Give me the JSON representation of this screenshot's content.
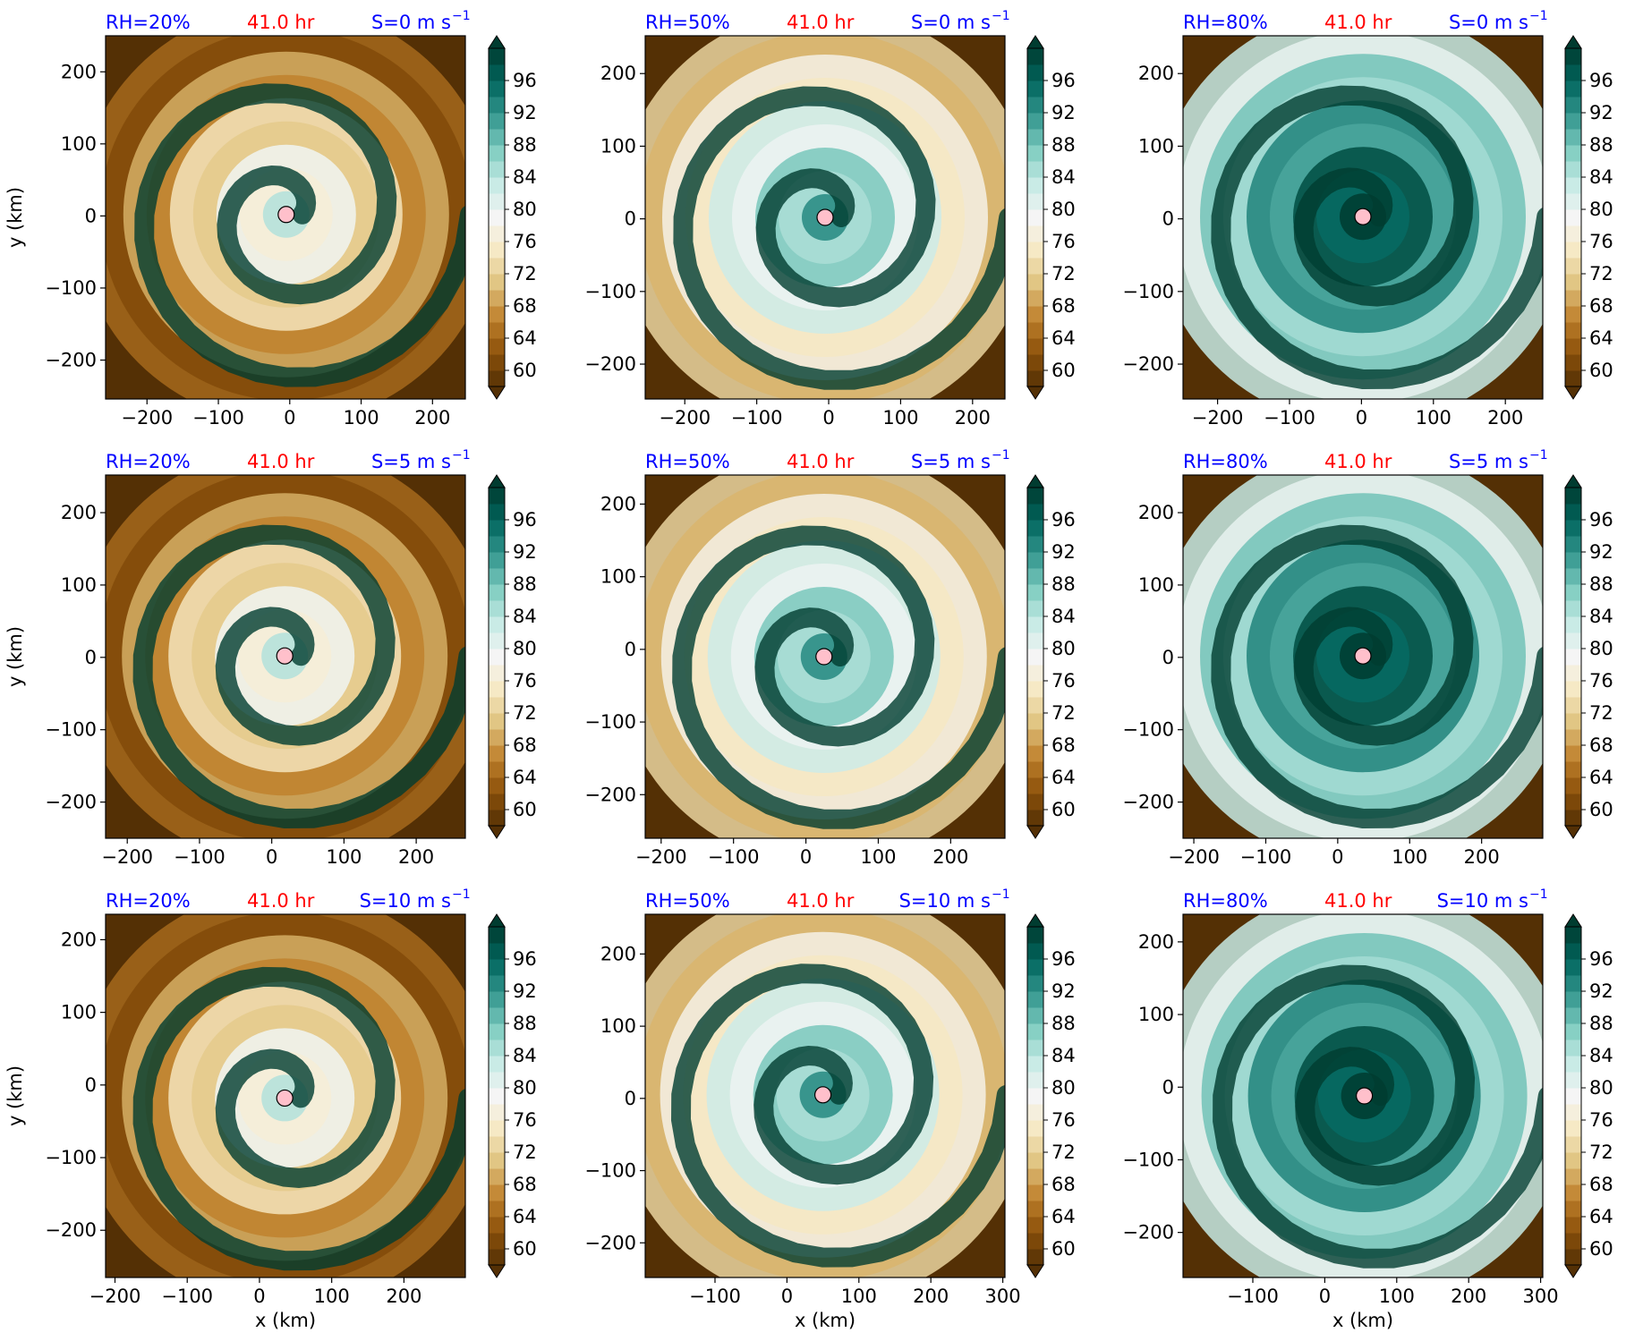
{
  "colors": {
    "rh_label": "#0000ff",
    "time_label": "#ff0000",
    "shear_label": "#0000ff",
    "center_marker": "#ffc0cb",
    "colormap_BrBG": [
      "#543005",
      "#8c510a",
      "#bf812d",
      "#dfc27d",
      "#f6e8c3",
      "#f5f5f5",
      "#c7eae5",
      "#80cdc1",
      "#35978f",
      "#01665e",
      "#003c30"
    ]
  },
  "chart_data": [
    {
      "type": "heatmap",
      "row": 0,
      "col": 0,
      "rh_text": "RH=20%",
      "time_text": "41.0 hr",
      "shear_text": "S=0 m s",
      "shear_sup": "−1",
      "xlabel": "",
      "ylabel": "y (km)",
      "xlim": [
        -258,
        246
      ],
      "ylim": [
        -254,
        250
      ],
      "xticks": [
        "−200",
        "−100",
        "0",
        "100",
        "200"
      ],
      "xtick_values": [
        -200,
        -100,
        0,
        100,
        200
      ],
      "yticks": [
        "−200",
        "−100",
        "0",
        "100",
        "200"
      ],
      "ytick_values": [
        -200,
        -100,
        0,
        100,
        200
      ],
      "center": [
        -5,
        2
      ],
      "colorbar": {
        "levels": [
          60,
          64,
          68,
          72,
          76,
          80,
          84,
          88,
          92,
          96
        ],
        "range": [
          58,
          100
        ],
        "extend": "both"
      }
    },
    {
      "type": "heatmap",
      "row": 0,
      "col": 1,
      "rh_text": "RH=50%",
      "time_text": "41.0 hr",
      "shear_text": "S=0 m s",
      "shear_sup": "−1",
      "xlabel": "",
      "ylabel": "",
      "xlim": [
        -255,
        245
      ],
      "ylim": [
        -248,
        252
      ],
      "xticks": [
        "−200",
        "−100",
        "0",
        "100",
        "200"
      ],
      "xtick_values": [
        -200,
        -100,
        0,
        100,
        200
      ],
      "yticks": [
        "−200",
        "−100",
        "0",
        "100",
        "200"
      ],
      "ytick_values": [
        -200,
        -100,
        0,
        100,
        200
      ],
      "center": [
        -5,
        2
      ],
      "colorbar": {
        "levels": [
          60,
          64,
          68,
          72,
          76,
          80,
          84,
          88,
          92,
          96
        ],
        "range": [
          58,
          100
        ],
        "extend": "both"
      }
    },
    {
      "type": "heatmap",
      "row": 0,
      "col": 2,
      "rh_text": "RH=80%",
      "time_text": "41.0 hr",
      "shear_text": "S=0 m s",
      "shear_sup": "−1",
      "xlabel": "",
      "ylabel": "",
      "xlim": [
        -248,
        252
      ],
      "ylim": [
        -248,
        252
      ],
      "xticks": [
        "−200",
        "−100",
        "0",
        "100",
        "200"
      ],
      "xtick_values": [
        -200,
        -100,
        0,
        100,
        200
      ],
      "yticks": [
        "−200",
        "−100",
        "0",
        "100",
        "200"
      ],
      "ytick_values": [
        -200,
        -100,
        0,
        100,
        200
      ],
      "center": [
        2,
        3
      ],
      "colorbar": {
        "levels": [
          60,
          64,
          68,
          72,
          76,
          80,
          84,
          88,
          92,
          96
        ],
        "range": [
          58,
          100
        ],
        "extend": "both"
      }
    },
    {
      "type": "heatmap",
      "row": 1,
      "col": 0,
      "rh_text": "RH=20%",
      "time_text": "41.0 hr",
      "shear_text": "S=5 m s",
      "shear_sup": "−1",
      "xlabel": "",
      "ylabel": "y (km)",
      "xlim": [
        -230,
        268
      ],
      "ylim": [
        -250,
        252
      ],
      "xticks": [
        "−200",
        "−100",
        "0",
        "100",
        "200"
      ],
      "xtick_values": [
        -200,
        -100,
        0,
        100,
        200
      ],
      "yticks": [
        "−200",
        "−100",
        "0",
        "100",
        "200"
      ],
      "ytick_values": [
        -200,
        -100,
        0,
        100,
        200
      ],
      "center": [
        18,
        2
      ],
      "colorbar": {
        "levels": [
          60,
          64,
          68,
          72,
          76,
          80,
          84,
          88,
          92,
          96
        ],
        "range": [
          58,
          100
        ],
        "extend": "both"
      }
    },
    {
      "type": "heatmap",
      "row": 1,
      "col": 1,
      "rh_text": "RH=50%",
      "time_text": "41.0 hr",
      "shear_text": "S=5 m s",
      "shear_sup": "−1",
      "xlabel": "",
      "ylabel": "",
      "xlim": [
        -222,
        275
      ],
      "ylim": [
        -260,
        240
      ],
      "xticks": [
        "−200",
        "−100",
        "0",
        "100",
        "200"
      ],
      "xtick_values": [
        -200,
        -100,
        0,
        100,
        200
      ],
      "yticks": [
        "−200",
        "−100",
        "0",
        "100",
        "200"
      ],
      "ytick_values": [
        -200,
        -100,
        0,
        100,
        200
      ],
      "center": [
        25,
        -10
      ],
      "colorbar": {
        "levels": [
          60,
          64,
          68,
          72,
          76,
          80,
          84,
          88,
          92,
          96
        ],
        "range": [
          58,
          100
        ],
        "extend": "both"
      }
    },
    {
      "type": "heatmap",
      "row": 1,
      "col": 2,
      "rh_text": "RH=80%",
      "time_text": "41.0 hr",
      "shear_text": "S=5 m s",
      "shear_sup": "−1",
      "xlabel": "",
      "ylabel": "",
      "xlim": [
        -215,
        285
      ],
      "ylim": [
        -250,
        252
      ],
      "xticks": [
        "−200",
        "−100",
        "0",
        "100",
        "200"
      ],
      "xtick_values": [
        -200,
        -100,
        0,
        100,
        200
      ],
      "yticks": [
        "−200",
        "−100",
        "0",
        "100",
        "200"
      ],
      "ytick_values": [
        -200,
        -100,
        0,
        100,
        200
      ],
      "center": [
        35,
        2
      ],
      "colorbar": {
        "levels": [
          60,
          64,
          68,
          72,
          76,
          80,
          84,
          88,
          92,
          96
        ],
        "range": [
          58,
          100
        ],
        "extend": "both"
      }
    },
    {
      "type": "heatmap",
      "row": 2,
      "col": 0,
      "rh_text": "RH=20%",
      "time_text": "41.0 hr",
      "shear_text": "S=10 m s",
      "shear_sup": "−1",
      "xlabel": "x (km)",
      "ylabel": "y (km)",
      "xlim": [
        -213,
        285
      ],
      "ylim": [
        -265,
        235
      ],
      "xticks": [
        "−200",
        "−100",
        "0",
        "100",
        "200"
      ],
      "xtick_values": [
        -200,
        -100,
        0,
        100,
        200
      ],
      "yticks": [
        "−200",
        "−100",
        "0",
        "100",
        "200"
      ],
      "ytick_values": [
        -200,
        -100,
        0,
        100,
        200
      ],
      "center": [
        35,
        -18
      ],
      "colorbar": {
        "levels": [
          60,
          64,
          68,
          72,
          76,
          80,
          84,
          88,
          92,
          96
        ],
        "range": [
          58,
          100
        ],
        "extend": "both"
      }
    },
    {
      "type": "heatmap",
      "row": 2,
      "col": 1,
      "rh_text": "RH=50%",
      "time_text": "41.0 hr",
      "shear_text": "S=10 m s",
      "shear_sup": "−1",
      "xlabel": "x (km)",
      "ylabel": "",
      "xlim": [
        -197,
        303
      ],
      "ylim": [
        -248,
        255
      ],
      "xticks": [
        "−100",
        "0",
        "100",
        "200",
        "300"
      ],
      "xtick_values": [
        -100,
        0,
        100,
        200,
        300
      ],
      "yticks": [
        "−200",
        "−100",
        "0",
        "100",
        "200"
      ],
      "ytick_values": [
        -200,
        -100,
        0,
        100,
        200
      ],
      "center": [
        50,
        5
      ],
      "colorbar": {
        "levels": [
          60,
          64,
          68,
          72,
          76,
          80,
          84,
          88,
          92,
          96
        ],
        "range": [
          58,
          100
        ],
        "extend": "both"
      }
    },
    {
      "type": "heatmap",
      "row": 2,
      "col": 2,
      "rh_text": "RH=80%",
      "time_text": "41.0 hr",
      "shear_text": "S=10 m s",
      "shear_sup": "−1",
      "xlabel": "x (km)",
      "ylabel": "",
      "xlim": [
        -197,
        303
      ],
      "ylim": [
        -262,
        238
      ],
      "xticks": [
        "−100",
        "0",
        "100",
        "200",
        "300"
      ],
      "xtick_values": [
        -100,
        0,
        100,
        200,
        300
      ],
      "yticks": [
        "−200",
        "−100",
        "0",
        "100",
        "200"
      ],
      "ytick_values": [
        -200,
        -100,
        0,
        100,
        200
      ],
      "center": [
        55,
        -12
      ],
      "colorbar": {
        "levels": [
          60,
          64,
          68,
          72,
          76,
          80,
          84,
          88,
          92,
          96
        ],
        "range": [
          58,
          100
        ],
        "extend": "both"
      }
    }
  ]
}
